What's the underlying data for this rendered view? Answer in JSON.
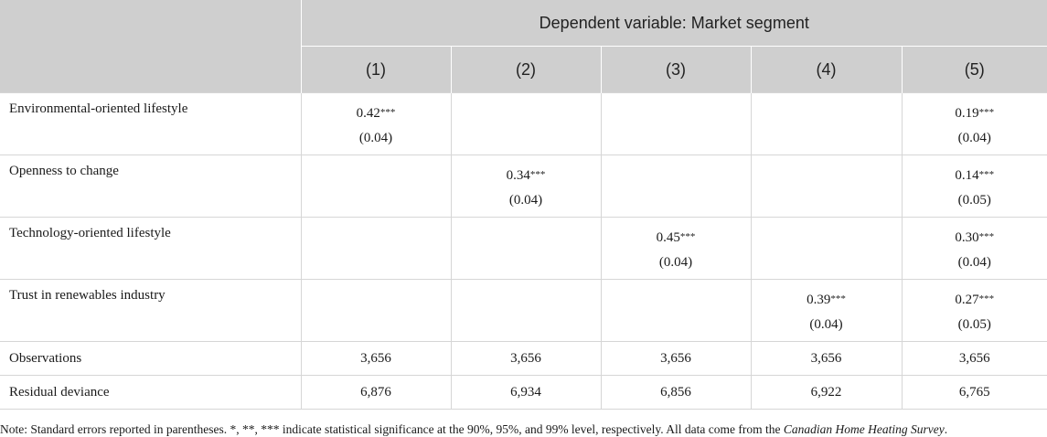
{
  "header": {
    "dependent_variable": "Dependent variable: Market segment",
    "columns": [
      "(1)",
      "(2)",
      "(3)",
      "(4)",
      "(5)"
    ]
  },
  "rows": [
    {
      "label": "Environmental-oriented lifestyle",
      "cells": [
        {
          "est": "0.42",
          "stars": "***",
          "se": "(0.04)"
        },
        {
          "est": "",
          "stars": "",
          "se": ""
        },
        {
          "est": "",
          "stars": "",
          "se": ""
        },
        {
          "est": "",
          "stars": "",
          "se": ""
        },
        {
          "est": "0.19",
          "stars": "***",
          "se": "(0.04)"
        }
      ]
    },
    {
      "label": "Openness to change",
      "cells": [
        {
          "est": "",
          "stars": "",
          "se": ""
        },
        {
          "est": "0.34",
          "stars": "***",
          "se": "(0.04)"
        },
        {
          "est": "",
          "stars": "",
          "se": ""
        },
        {
          "est": "",
          "stars": "",
          "se": ""
        },
        {
          "est": "0.14",
          "stars": "***",
          "se": "(0.05)"
        }
      ]
    },
    {
      "label": "Technology-oriented lifestyle",
      "cells": [
        {
          "est": "",
          "stars": "",
          "se": ""
        },
        {
          "est": "",
          "stars": "",
          "se": ""
        },
        {
          "est": "0.45",
          "stars": "***",
          "se": "(0.04)"
        },
        {
          "est": "",
          "stars": "",
          "se": ""
        },
        {
          "est": "0.30",
          "stars": "***",
          "se": "(0.04)"
        }
      ]
    },
    {
      "label": "Trust in renewables industry",
      "cells": [
        {
          "est": "",
          "stars": "",
          "se": ""
        },
        {
          "est": "",
          "stars": "",
          "se": ""
        },
        {
          "est": "",
          "stars": "",
          "se": ""
        },
        {
          "est": "0.39",
          "stars": "***",
          "se": "(0.04)"
        },
        {
          "est": "0.27",
          "stars": "***",
          "se": "(0.05)"
        }
      ]
    }
  ],
  "stats": [
    {
      "label": "Observations",
      "values": [
        "3,656",
        "3,656",
        "3,656",
        "3,656",
        "3,656"
      ]
    },
    {
      "label": "Residual deviance",
      "values": [
        "6,876",
        "6,934",
        "6,856",
        "6,922",
        "6,765"
      ]
    }
  ],
  "note": {
    "text": "Note: Standard errors reported in parentheses. *, **, *** indicate statistical significance at the 90%, 95%, and 99% level, respectively. All data come from the ",
    "source": "Canadian Home Heating Survey",
    "end": "."
  }
}
